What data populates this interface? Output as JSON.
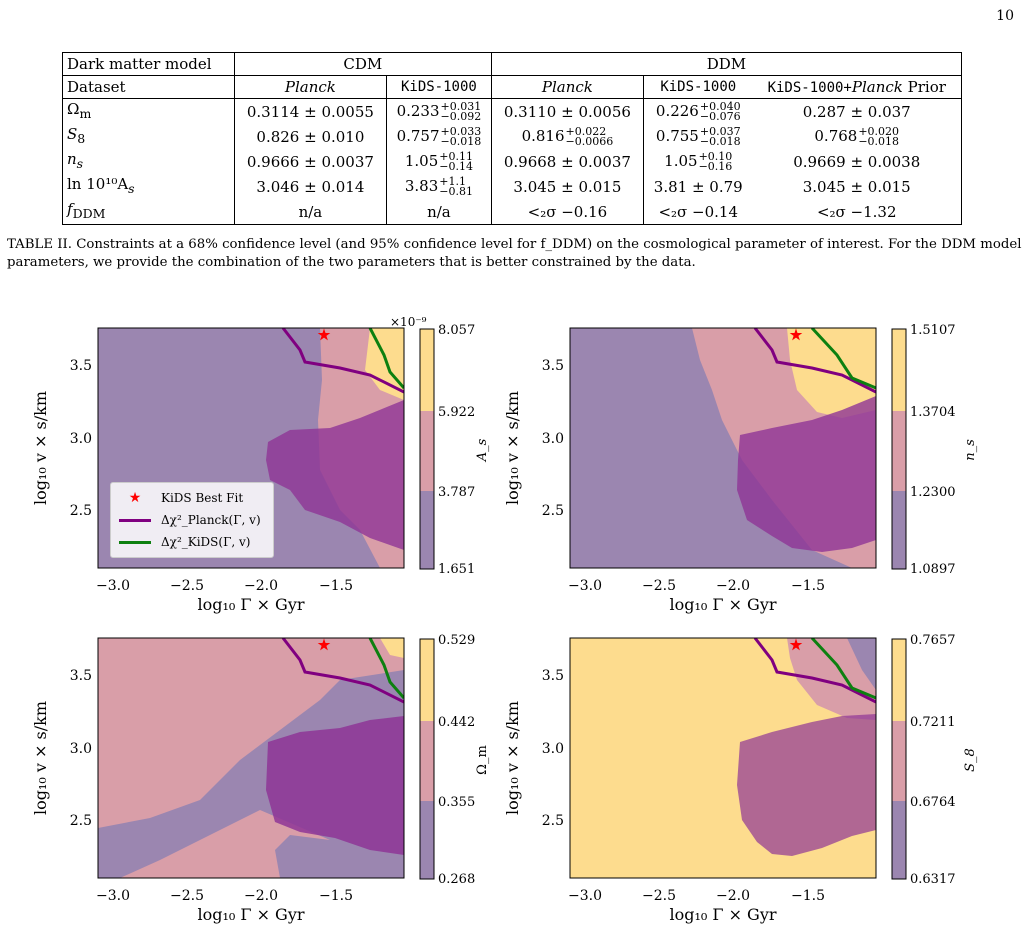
{
  "page_number": "10",
  "table": {
    "header_row1": {
      "label": "Dark matter model",
      "cdm": "CDM",
      "ddm": "DDM"
    },
    "header_row2": {
      "label": "Dataset",
      "c1": "Planck",
      "c2": "KiDS-1000",
      "c3": "Planck",
      "c4": "KiDS-1000",
      "c5": "KiDS-1000+",
      "c5b": "Planck",
      "c5c": " Prior"
    },
    "rows": [
      {
        "param": "Ω",
        "sub": "m",
        "c1": "0.3114 ± 0.0055",
        "c2": "0.233",
        "c2_sup": "+0.031",
        "c2_sub": "−0.092",
        "c3": "0.3110 ± 0.0056",
        "c4": "0.226",
        "c4_sup": "+0.040",
        "c4_sub": "−0.076",
        "c5": "0.287 ± 0.037"
      },
      {
        "param": "S",
        "sub": "8",
        "c1": "0.826 ± 0.010",
        "c2": "0.757",
        "c2_sup": "+0.033",
        "c2_sub": "−0.018",
        "c3": "0.816",
        "c3_sup": "+0.022",
        "c3_sub": "−0.0066",
        "c4": "0.755",
        "c4_sup": "+0.037",
        "c4_sub": "−0.018",
        "c5": "0.768",
        "c5_sup": "+0.020",
        "c5_sub": "−0.018"
      },
      {
        "param": "n",
        "sub": "s",
        "c1": "0.9666 ± 0.0037",
        "c2": "1.05",
        "c2_sup": "+0.11",
        "c2_sub": "−0.14",
        "c3": "0.9668 ± 0.0037",
        "c4": "1.05",
        "c4_sup": "+0.10",
        "c4_sub": "−0.16",
        "c5": "0.9669 ± 0.0038"
      },
      {
        "param": "ln 10¹⁰A",
        "sub": "s",
        "c1": "3.046 ± 0.014",
        "c2": "3.83",
        "c2_sup": "+1.1",
        "c2_sub": "−0.81",
        "c3": "3.045 ± 0.015",
        "c4": "3.81 ± 0.79",
        "c5": "3.045 ± 0.015"
      },
      {
        "param": "f",
        "sub": "DDM",
        "c1": "n/a",
        "c2": "n/a",
        "c3": "<₂σ −0.16",
        "c4": "<₂σ −0.14",
        "c5": "<₂σ −1.32"
      }
    ]
  },
  "caption": "TABLE II. Constraints at a 68% confidence level (and 95% confidence level for f_DDM) on the cosmological parameter of interest. For the DDM model parameters, we provide the combination of the two parameters that is better constrained by the data.",
  "chart_data": [
    {
      "type": "heatmap",
      "xlabel": "log₁₀ Γ × Gyr",
      "ylabel": "log₁₀ v × s/km",
      "xlim": [
        -3.1,
        -1.15
      ],
      "ylim": [
        2.1,
        3.7
      ],
      "xticks": [
        "−3.0",
        "−2.5",
        "−2.0",
        "−1.5"
      ],
      "yticks": [
        "2.5",
        "3.0",
        "3.5"
      ],
      "colorbar_label": "A_s",
      "colorbar_ticks": [
        "1.651",
        "3.787",
        "5.922",
        "8.057"
      ],
      "colorbar_multiplier": "×10⁻⁹",
      "best_fit": {
        "x": -1.65,
        "y": 3.67
      },
      "legend": [
        "KiDS Best Fit",
        "Δχ²_Planck(Γ, v)",
        "Δχ²_KiDS(Γ, v)"
      ]
    },
    {
      "type": "heatmap",
      "xlabel": "log₁₀ Γ × Gyr",
      "ylabel": "log₁₀ v × s/km",
      "xlim": [
        -3.1,
        -1.15
      ],
      "ylim": [
        2.1,
        3.7
      ],
      "xticks": [
        "−3.0",
        "−2.5",
        "−2.0",
        "−1.5"
      ],
      "yticks": [
        "2.5",
        "3.0",
        "3.5"
      ],
      "colorbar_label": "n_s",
      "colorbar_ticks": [
        "1.0897",
        "1.2300",
        "1.3704",
        "1.5107"
      ],
      "best_fit": {
        "x": -1.65,
        "y": 3.67
      }
    },
    {
      "type": "heatmap",
      "xlabel": "log₁₀ Γ × Gyr",
      "ylabel": "log₁₀ v × s/km",
      "xlim": [
        -3.1,
        -1.15
      ],
      "ylim": [
        2.1,
        3.7
      ],
      "xticks": [
        "−3.0",
        "−2.5",
        "−2.0",
        "−1.5"
      ],
      "yticks": [
        "2.5",
        "3.0",
        "3.5"
      ],
      "colorbar_label": "Ω_m",
      "colorbar_ticks": [
        "0.268",
        "0.355",
        "0.442",
        "0.529"
      ],
      "best_fit": {
        "x": -1.65,
        "y": 3.67
      }
    },
    {
      "type": "heatmap",
      "xlabel": "log₁₀ Γ × Gyr",
      "ylabel": "log₁₀ v × s/km",
      "xlim": [
        -3.1,
        -1.15
      ],
      "ylim": [
        2.1,
        3.7
      ],
      "xticks": [
        "−3.0",
        "−2.5",
        "−2.0",
        "−1.5"
      ],
      "yticks": [
        "2.5",
        "3.0",
        "3.5"
      ],
      "colorbar_label": "S_8",
      "colorbar_ticks": [
        "0.6317",
        "0.6764",
        "0.7211",
        "0.7657"
      ],
      "best_fit": {
        "x": -1.65,
        "y": 3.67
      }
    }
  ],
  "colors": {
    "purple_level": "#9b86b0",
    "pink_level": "#d99ea8",
    "yellow_level": "#fddc8e",
    "dark_purple": "#8e3596",
    "planck_line": "#800080",
    "kids_line": "#0d8010",
    "star": "#ff0000"
  }
}
